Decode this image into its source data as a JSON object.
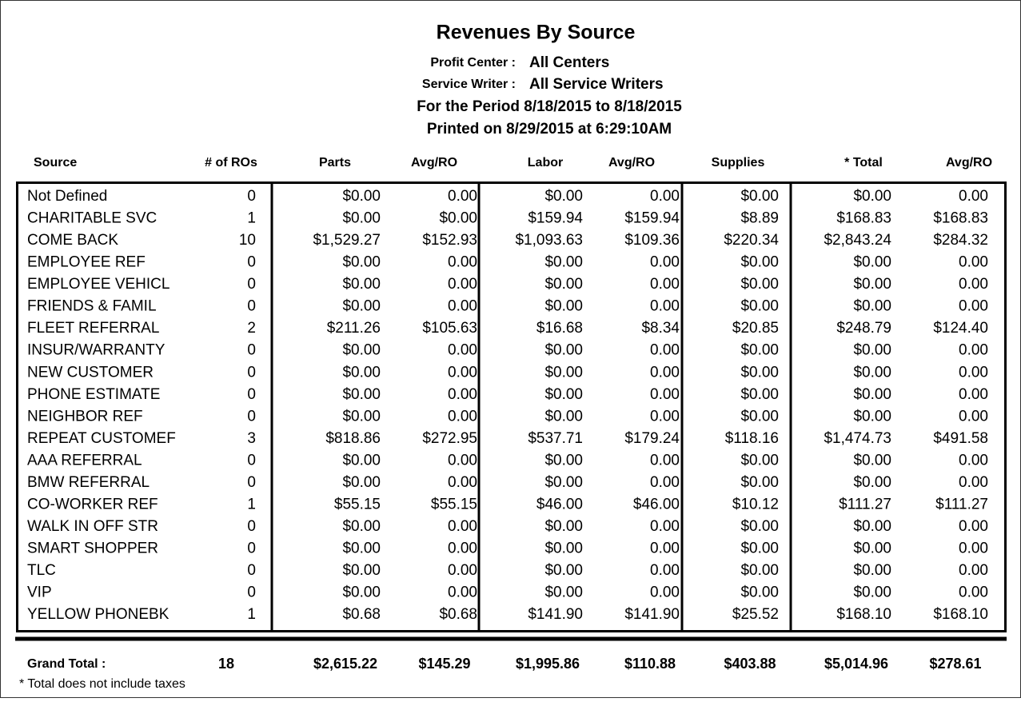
{
  "header": {
    "title": "Revenues By Source",
    "profit_center_label": "Profit Center :",
    "profit_center": "All Centers",
    "service_writer_label": "Service Writer :",
    "service_writer": "All Service Writers",
    "period": "For the Period 8/18/2015 to 8/18/2015",
    "printed": "Printed on 8/29/2015 at  6:29:10AM"
  },
  "table": {
    "columns": [
      "Source",
      "# of ROs",
      "Parts",
      "Avg/RO",
      "Labor",
      "Avg/RO",
      "Supplies",
      "* Total",
      "Avg/RO"
    ],
    "rows": [
      [
        "Not Defined",
        "0",
        "$0.00",
        "0.00",
        "$0.00",
        "0.00",
        "$0.00",
        "$0.00",
        "0.00"
      ],
      [
        "CHARITABLE SVC",
        "1",
        "$0.00",
        "$0.00",
        "$159.94",
        "$159.94",
        "$8.89",
        "$168.83",
        "$168.83"
      ],
      [
        "COME BACK",
        "10",
        "$1,529.27",
        "$152.93",
        "$1,093.63",
        "$109.36",
        "$220.34",
        "$2,843.24",
        "$284.32"
      ],
      [
        "EMPLOYEE REF",
        "0",
        "$0.00",
        "0.00",
        "$0.00",
        "0.00",
        "$0.00",
        "$0.00",
        "0.00"
      ],
      [
        "EMPLOYEE VEHICL",
        "0",
        "$0.00",
        "0.00",
        "$0.00",
        "0.00",
        "$0.00",
        "$0.00",
        "0.00"
      ],
      [
        "FRIENDS & FAMIL",
        "0",
        "$0.00",
        "0.00",
        "$0.00",
        "0.00",
        "$0.00",
        "$0.00",
        "0.00"
      ],
      [
        "FLEET REFERRAL",
        "2",
        "$211.26",
        "$105.63",
        "$16.68",
        "$8.34",
        "$20.85",
        "$248.79",
        "$124.40"
      ],
      [
        "INSUR/WARRANTY",
        "0",
        "$0.00",
        "0.00",
        "$0.00",
        "0.00",
        "$0.00",
        "$0.00",
        "0.00"
      ],
      [
        "NEW CUSTOMER",
        "0",
        "$0.00",
        "0.00",
        "$0.00",
        "0.00",
        "$0.00",
        "$0.00",
        "0.00"
      ],
      [
        "PHONE ESTIMATE",
        "0",
        "$0.00",
        "0.00",
        "$0.00",
        "0.00",
        "$0.00",
        "$0.00",
        "0.00"
      ],
      [
        "NEIGHBOR REF",
        "0",
        "$0.00",
        "0.00",
        "$0.00",
        "0.00",
        "$0.00",
        "$0.00",
        "0.00"
      ],
      [
        "REPEAT CUSTOMEF",
        "3",
        "$818.86",
        "$272.95",
        "$537.71",
        "$179.24",
        "$118.16",
        "$1,474.73",
        "$491.58"
      ],
      [
        "AAA REFERRAL",
        "0",
        "$0.00",
        "0.00",
        "$0.00",
        "0.00",
        "$0.00",
        "$0.00",
        "0.00"
      ],
      [
        "BMW REFERRAL",
        "0",
        "$0.00",
        "0.00",
        "$0.00",
        "0.00",
        "$0.00",
        "$0.00",
        "0.00"
      ],
      [
        "CO-WORKER REF",
        "1",
        "$55.15",
        "$55.15",
        "$46.00",
        "$46.00",
        "$10.12",
        "$111.27",
        "$111.27"
      ],
      [
        "WALK IN OFF STR",
        "0",
        "$0.00",
        "0.00",
        "$0.00",
        "0.00",
        "$0.00",
        "$0.00",
        "0.00"
      ],
      [
        "SMART SHOPPER",
        "0",
        "$0.00",
        "0.00",
        "$0.00",
        "0.00",
        "$0.00",
        "$0.00",
        "0.00"
      ],
      [
        "TLC",
        "0",
        "$0.00",
        "0.00",
        "$0.00",
        "0.00",
        "$0.00",
        "$0.00",
        "0.00"
      ],
      [
        "VIP",
        "0",
        "$0.00",
        "0.00",
        "$0.00",
        "0.00",
        "$0.00",
        "$0.00",
        "0.00"
      ],
      [
        "YELLOW PHONEBK",
        "1",
        "$0.68",
        "$0.68",
        "$141.90",
        "$141.90",
        "$25.52",
        "$168.10",
        "$168.10"
      ]
    ]
  },
  "grand_total": {
    "label": "Grand Total :",
    "values": [
      "18",
      "$2,615.22",
      "$145.29",
      "$1,995.86",
      "$110.88",
      "$403.88",
      "$5,014.96",
      "$278.61"
    ]
  },
  "footnote": "* Total does not include taxes"
}
